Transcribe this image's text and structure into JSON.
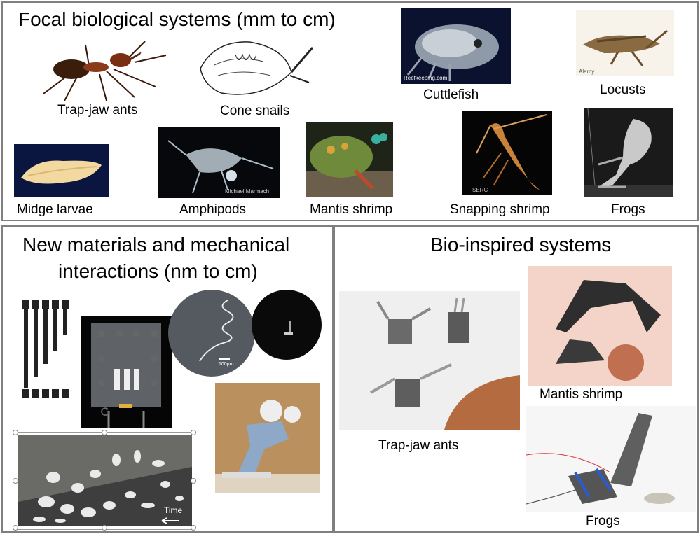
{
  "top": {
    "title": "Focal biological systems (mm to cm)",
    "labels": {
      "trap_jaw_ants": "Trap-jaw ants",
      "cone_snails": "Cone snails",
      "cuttlefish": "Cuttlefish",
      "locusts": "Locusts",
      "midge_larvae": "Midge larvae",
      "amphipods": "Amphipods",
      "mantis_shrimp": "Mantis shrimp",
      "snapping_shrimp": "Snapping shrimp",
      "frogs": "Frogs"
    },
    "credits": {
      "cuttlefish": "Reefkeeping.com",
      "locusts": "Alamy",
      "amphipods": "Michael Marmach",
      "snapping_shrimp": "SERC"
    }
  },
  "left": {
    "title_line1": "New materials and mechanical",
    "title_line2": "interactions (nm to cm)",
    "scale_bar": "100μm",
    "time_label": "Time"
  },
  "right": {
    "title": "Bio-inspired systems",
    "labels": {
      "trap_jaw_ants": "Trap-jaw ants",
      "mantis_shrimp": "Mantis shrimp",
      "frogs": "Frogs"
    }
  }
}
